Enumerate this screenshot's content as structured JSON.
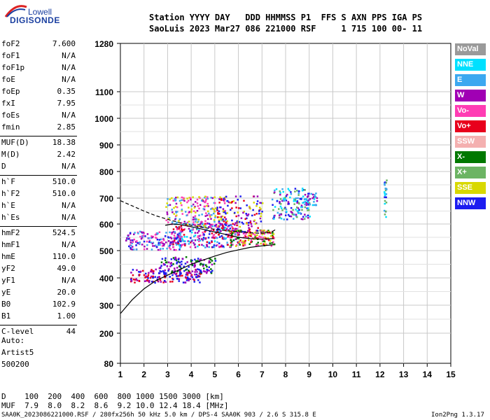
{
  "logo": {
    "line1": "Lowell",
    "line2": "DIGISONDE"
  },
  "header": {
    "line1": "Station YYYY DAY   DDD HHMMSS P1  FFS S AXN PPS IGA PS",
    "line2": "SaoLuis 2023 Mar27 086 221000 RSF     1 715 100 00- 11"
  },
  "params": [
    {
      "name": "foF2",
      "value": "7.600"
    },
    {
      "name": "foF1",
      "value": "N/A"
    },
    {
      "name": "foF1p",
      "value": "N/A"
    },
    {
      "name": "foE",
      "value": "N/A"
    },
    {
      "name": "foEp",
      "value": "0.35"
    },
    {
      "name": "fxI",
      "value": "7.95"
    },
    {
      "name": "foEs",
      "value": "N/A"
    },
    {
      "name": "fmin",
      "value": "2.85"
    },
    {
      "name": "MUF(D)",
      "value": "18.38",
      "sep": true
    },
    {
      "name": "M(D)",
      "value": "2.42"
    },
    {
      "name": "D",
      "value": "N/A"
    },
    {
      "name": "h`F",
      "value": "510.0",
      "sep": true
    },
    {
      "name": "h`F2",
      "value": "510.0"
    },
    {
      "name": "h`E",
      "value": "N/A"
    },
    {
      "name": "h`Es",
      "value": "N/A"
    },
    {
      "name": "hmF2",
      "value": "524.5",
      "sep": true
    },
    {
      "name": "hmF1",
      "value": "N/A"
    },
    {
      "name": "hmE",
      "value": "110.0"
    },
    {
      "name": "yF2",
      "value": "49.0"
    },
    {
      "name": "yF1",
      "value": "N/A"
    },
    {
      "name": "yE",
      "value": "20.0"
    },
    {
      "name": "B0",
      "value": "102.9"
    },
    {
      "name": "B1",
      "value": "1.00"
    },
    {
      "name": "C-level",
      "value": "44",
      "sep": true
    }
  ],
  "auto": {
    "line1": "Auto:",
    "line2": "Artist5",
    "line3": "500200"
  },
  "legend": [
    {
      "label": "NoVal",
      "color": "#9a9a9a"
    },
    {
      "label": "NNE",
      "color": "#00e0ff"
    },
    {
      "label": "E",
      "color": "#3ca8f0"
    },
    {
      "label": "W",
      "color": "#a000b4"
    },
    {
      "label": "Vo-",
      "color": "#ff3cb4"
    },
    {
      "label": "Vo+",
      "color": "#e8001c"
    },
    {
      "label": "SSW",
      "color": "#f4b0b0"
    },
    {
      "label": "X-",
      "color": "#007800"
    },
    {
      "label": "X+",
      "color": "#6cb464"
    },
    {
      "label": "SSE",
      "color": "#d8d800"
    },
    {
      "label": "NNW",
      "color": "#1c1cf0"
    }
  ],
  "footer": {
    "d_line": "D    100  200  400  600  800 1000 1500 3000 [km]",
    "muf_line": "MUF  7.9  8.0  8.2  8.6  9.2 10.0 12.4 18.4 [MHz]",
    "file_line": "SAA0K_2023086221000.RSF / 280fx256h 50 kHz 5.0 km / DPS-4 SAA0K 903 / 2.6 S 315.8 E",
    "version": "Ion2Png 1.3.17"
  },
  "chart_data": {
    "type": "scatter",
    "xlim": [
      1,
      15
    ],
    "ylim": [
      80,
      1280
    ],
    "x_ticks": [
      1,
      2,
      3,
      4,
      5,
      6,
      7,
      8,
      9,
      10,
      11,
      12,
      13,
      14,
      15
    ],
    "y_ticks": [
      80,
      200,
      300,
      400,
      500,
      600,
      700,
      800,
      900,
      1000,
      1100,
      1280
    ],
    "grid": true,
    "series": [
      {
        "name": "profile_upper_dashed",
        "style": "dashed",
        "x": [
          1.0,
          1.5,
          2.0,
          2.5,
          3.0,
          3.5,
          4.0,
          4.5,
          5.0,
          5.5,
          6.0,
          6.5,
          7.0,
          7.4,
          7.6
        ],
        "y": [
          690,
          670,
          650,
          632,
          618,
          605,
          595,
          587,
          580,
          575,
          570,
          567,
          565,
          570,
          580
        ]
      },
      {
        "name": "profile_lower_solid",
        "style": "solid",
        "x": [
          1.0,
          1.5,
          2.0,
          2.5,
          3.0,
          3.5,
          4.0,
          4.5,
          5.0,
          5.5,
          6.0,
          6.5,
          7.0,
          7.5
        ],
        "y": [
          270,
          320,
          360,
          390,
          410,
          430,
          450,
          465,
          480,
          493,
          503,
          512,
          518,
          522
        ]
      },
      {
        "name": "profile_F2_trace",
        "style": "solid",
        "x": [
          2.9,
          3.2,
          3.5,
          4.0,
          4.5,
          5.0,
          5.5,
          6.0,
          6.5,
          7.0,
          7.5
        ],
        "y": [
          595,
          600,
          598,
          590,
          580,
          570,
          560,
          550,
          545,
          543,
          545
        ]
      },
      {
        "name": "echo_clusters",
        "points": [
          {
            "x": 2.9,
            "y": 410,
            "dx": 1.5,
            "dy": 25,
            "n": 160,
            "c": [
              "#a000b4",
              "#1c1cf0",
              "#e8001c"
            ]
          },
          {
            "x": 3.8,
            "y": 450,
            "dx": 1.2,
            "dy": 30,
            "n": 120,
            "c": [
              "#1c1cf0",
              "#a000b4",
              "#007800"
            ]
          },
          {
            "x": 2.4,
            "y": 540,
            "dx": 1.2,
            "dy": 35,
            "n": 160,
            "c": [
              "#a000b4",
              "#1c1cf0",
              "#ff3cb4",
              "#3ca8f0"
            ]
          },
          {
            "x": 4.6,
            "y": 560,
            "dx": 1.4,
            "dy": 45,
            "n": 260,
            "c": [
              "#a000b4",
              "#ff3cb4",
              "#e8001c",
              "#1c1cf0",
              "#3ca8f0",
              "#00e0ff"
            ]
          },
          {
            "x": 6.5,
            "y": 550,
            "dx": 1.0,
            "dy": 30,
            "n": 160,
            "c": [
              "#d8d800",
              "#e8001c",
              "#007800",
              "#ff3cb4"
            ]
          },
          {
            "x": 4.2,
            "y": 650,
            "dx": 1.3,
            "dy": 60,
            "n": 200,
            "c": [
              "#d8d800",
              "#a000b4",
              "#ff3cb4",
              "#3ca8f0"
            ]
          },
          {
            "x": 6.0,
            "y": 640,
            "dx": 1.0,
            "dy": 70,
            "n": 140,
            "c": [
              "#a000b4",
              "#e8001c",
              "#d8d800",
              "#1c1cf0"
            ]
          },
          {
            "x": 8.2,
            "y": 680,
            "dx": 0.8,
            "dy": 60,
            "n": 140,
            "c": [
              "#00e0ff",
              "#3ca8f0",
              "#a000b4",
              "#6cb464",
              "#1c1cf0"
            ]
          },
          {
            "x": 9.0,
            "y": 700,
            "dx": 0.3,
            "dy": 25,
            "n": 40,
            "c": [
              "#3ca8f0",
              "#00e0ff",
              "#a000b4"
            ]
          },
          {
            "x": 12.2,
            "y": 700,
            "dx": 0.05,
            "dy": 80,
            "n": 25,
            "c": [
              "#3ca8f0",
              "#00e0ff",
              "#1c1cf0",
              "#6cb464"
            ]
          }
        ]
      }
    ]
  }
}
